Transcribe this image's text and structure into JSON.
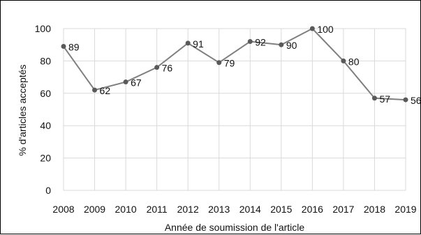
{
  "chart_data": {
    "type": "line",
    "title": "",
    "xlabel": "Année de soumission de l'article",
    "ylabel": "% d'articles acceptés",
    "categories": [
      "2008",
      "2009",
      "2010",
      "2011",
      "2012",
      "2013",
      "2014",
      "2015",
      "2016",
      "2017",
      "2018",
      "2019"
    ],
    "series": [
      {
        "values": [
          89,
          62,
          67,
          76,
          91,
          79,
          92,
          90,
          100,
          80,
          57,
          56
        ]
      }
    ],
    "data_labels": [
      "89",
      "62",
      "67",
      "76",
      "91",
      "79",
      "92",
      "90",
      "100",
      "80",
      "57",
      "56"
    ],
    "ylim": [
      0,
      100
    ],
    "yticks": [
      "0",
      "20",
      "40",
      "60",
      "80",
      "100"
    ],
    "grid": true,
    "legend": "none",
    "colors": {
      "line": "#7f7f7f",
      "marker": "#595959",
      "grid": "#d9d9d9"
    }
  }
}
